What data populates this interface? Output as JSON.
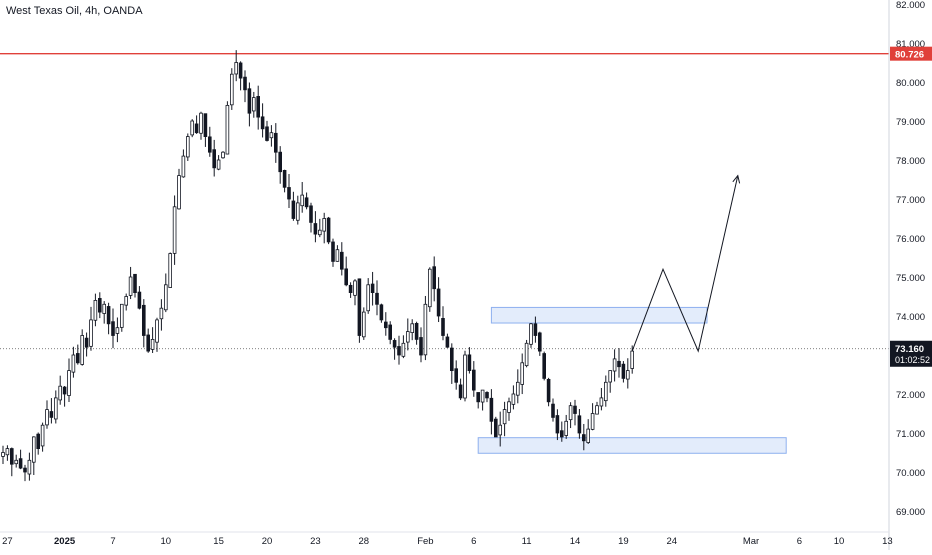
{
  "header": {
    "title": "West Texas Oil, 4h, OANDA"
  },
  "colors": {
    "background": "#ffffff",
    "candle": "#131722",
    "resistance_line": "#e0403a",
    "zone_fill": "#e3ecfb",
    "zone_border": "#8eb0ef",
    "price_badge": "#131722",
    "resistance_badge": "#e0403a",
    "axis_text": "#131722"
  },
  "chart_data": {
    "type": "candlestick",
    "title": "West Texas Oil, 4h, OANDA",
    "y_axis": {
      "position": "right",
      "ylim": [
        68.6,
        82.1
      ],
      "ticks": [
        "69.000",
        "70.000",
        "71.000",
        "72.000",
        "73.000",
        "74.000",
        "75.000",
        "76.000",
        "77.000",
        "78.000",
        "79.000",
        "80.000",
        "81.000",
        "82.000"
      ]
    },
    "x_axis": {
      "ticks": [
        {
          "label": "27",
          "x": 1
        },
        {
          "label": "2025",
          "x": 14,
          "bold": true
        },
        {
          "label": "7",
          "x": 25
        },
        {
          "label": "10",
          "x": 37
        },
        {
          "label": "15",
          "x": 49
        },
        {
          "label": "20",
          "x": 60
        },
        {
          "label": "23",
          "x": 71
        },
        {
          "label": "28",
          "x": 82
        },
        {
          "label": "Feb",
          "x": 96
        },
        {
          "label": "6",
          "x": 107
        },
        {
          "label": "11",
          "x": 119
        },
        {
          "label": "14",
          "x": 130
        },
        {
          "label": "19",
          "x": 141
        },
        {
          "label": "24",
          "x": 152
        },
        {
          "label": "Mar",
          "x": 170
        },
        {
          "label": "6",
          "x": 181
        },
        {
          "label": "10",
          "x": 190
        },
        {
          "label": "13",
          "x": 201
        }
      ]
    },
    "candle_path": [
      [
        0,
        70.5
      ],
      [
        1,
        70.6
      ],
      [
        2,
        70.2
      ],
      [
        3,
        70.3
      ],
      [
        4,
        70.1
      ],
      [
        5,
        70.0
      ],
      [
        6,
        70.3
      ],
      [
        7,
        70.9
      ],
      [
        8,
        70.6
      ],
      [
        9,
        71.2
      ],
      [
        10,
        71.6
      ],
      [
        11,
        71.4
      ],
      [
        12,
        71.9
      ],
      [
        13,
        72.2
      ],
      [
        14,
        72.0
      ],
      [
        15,
        72.6
      ],
      [
        16,
        73.0
      ],
      [
        17,
        72.8
      ],
      [
        18,
        73.5
      ],
      [
        19,
        73.2
      ],
      [
        20,
        73.9
      ],
      [
        21,
        74.4
      ],
      [
        22,
        74.1
      ],
      [
        23,
        74.3
      ],
      [
        24,
        73.8
      ],
      [
        25,
        73.5
      ],
      [
        26,
        73.7
      ],
      [
        27,
        74.3
      ],
      [
        28,
        74.5
      ],
      [
        29,
        75.0
      ],
      [
        30,
        74.6
      ],
      [
        31,
        74.2
      ],
      [
        32,
        73.5
      ],
      [
        33,
        73.1
      ],
      [
        34,
        73.4
      ],
      [
        35,
        73.9
      ],
      [
        36,
        74.2
      ],
      [
        37,
        74.8
      ],
      [
        38,
        75.6
      ],
      [
        39,
        76.8
      ],
      [
        40,
        77.6
      ],
      [
        41,
        78.1
      ],
      [
        42,
        78.6
      ],
      [
        43,
        79.0
      ],
      [
        44,
        78.7
      ],
      [
        45,
        79.2
      ],
      [
        46,
        78.6
      ],
      [
        47,
        78.2
      ],
      [
        48,
        77.8
      ],
      [
        49,
        78.0
      ],
      [
        50,
        78.2
      ],
      [
        51,
        79.4
      ],
      [
        52,
        80.2
      ],
      [
        53,
        80.5
      ],
      [
        54,
        80.1
      ],
      [
        55,
        79.8
      ],
      [
        56,
        79.2
      ],
      [
        57,
        79.6
      ],
      [
        58,
        79.1
      ],
      [
        59,
        78.8
      ],
      [
        60,
        78.5
      ],
      [
        61,
        78.7
      ],
      [
        62,
        78.2
      ],
      [
        63,
        77.7
      ],
      [
        64,
        77.3
      ],
      [
        65,
        77.0
      ],
      [
        66,
        76.5
      ],
      [
        67,
        76.9
      ],
      [
        68,
        77.1
      ],
      [
        69,
        76.8
      ],
      [
        70,
        76.4
      ],
      [
        71,
        76.1
      ],
      [
        72,
        76.2
      ],
      [
        73,
        76.5
      ],
      [
        74,
        75.9
      ],
      [
        75,
        75.4
      ],
      [
        76,
        75.7
      ],
      [
        77,
        75.2
      ],
      [
        78,
        74.8
      ],
      [
        79,
        74.6
      ],
      [
        80,
        74.9
      ],
      [
        81,
        73.5
      ],
      [
        82,
        74.1
      ],
      [
        83,
        74.8
      ],
      [
        84,
        74.6
      ],
      [
        85,
        74.3
      ],
      [
        86,
        73.9
      ],
      [
        87,
        73.7
      ],
      [
        88,
        73.4
      ],
      [
        89,
        73.2
      ],
      [
        90,
        73.0
      ],
      [
        91,
        73.3
      ],
      [
        92,
        73.6
      ],
      [
        93,
        73.8
      ],
      [
        94,
        73.4
      ],
      [
        95,
        73.0
      ],
      [
        96,
        74.3
      ],
      [
        97,
        75.2
      ],
      [
        98,
        74.7
      ],
      [
        99,
        74.0
      ],
      [
        100,
        73.5
      ],
      [
        101,
        73.2
      ],
      [
        102,
        72.6
      ],
      [
        103,
        72.3
      ],
      [
        104,
        71.9
      ],
      [
        105,
        73.0
      ],
      [
        106,
        72.6
      ],
      [
        107,
        72.1
      ],
      [
        108,
        71.8
      ],
      [
        109,
        72.1
      ],
      [
        110,
        71.9
      ],
      [
        111,
        71.3
      ],
      [
        112,
        70.9
      ],
      [
        113,
        71.2
      ],
      [
        114,
        71.6
      ],
      [
        115,
        71.8
      ],
      [
        116,
        72.0
      ],
      [
        117,
        72.3
      ],
      [
        118,
        72.8
      ],
      [
        119,
        73.3
      ],
      [
        120,
        73.8
      ],
      [
        121,
        73.5
      ],
      [
        122,
        73.1
      ],
      [
        123,
        72.4
      ],
      [
        124,
        71.8
      ],
      [
        125,
        71.4
      ],
      [
        126,
        71.0
      ],
      [
        127,
        70.9
      ],
      [
        128,
        71.3
      ],
      [
        129,
        71.7
      ],
      [
        130,
        71.5
      ],
      [
        131,
        71.0
      ],
      [
        132,
        70.8
      ],
      [
        133,
        71.1
      ],
      [
        134,
        71.5
      ],
      [
        135,
        71.7
      ],
      [
        136,
        71.9
      ],
      [
        137,
        72.3
      ],
      [
        138,
        72.6
      ],
      [
        139,
        72.9
      ],
      [
        140,
        72.7
      ],
      [
        141,
        72.4
      ],
      [
        142,
        72.6
      ],
      [
        143,
        73.1
      ]
    ],
    "last_candle_x": 143,
    "x_range": [
      0,
      205
    ],
    "resistance": {
      "price": 80.726,
      "label": "80.726"
    },
    "current_price": {
      "price": 73.16,
      "label": "73.160",
      "countdown": "01:02:52"
    },
    "zones": [
      {
        "name": "upper-zone",
        "x_start": 111,
        "x_end": 160,
        "y_low": 73.82,
        "y_high": 74.22
      },
      {
        "name": "lower-zone",
        "x_start": 108,
        "x_end": 178,
        "y_low": 70.48,
        "y_high": 70.88
      }
    ],
    "projection": [
      [
        143,
        73.1
      ],
      [
        150,
        75.2
      ],
      [
        158,
        73.1
      ],
      [
        167,
        77.6
      ]
    ]
  }
}
